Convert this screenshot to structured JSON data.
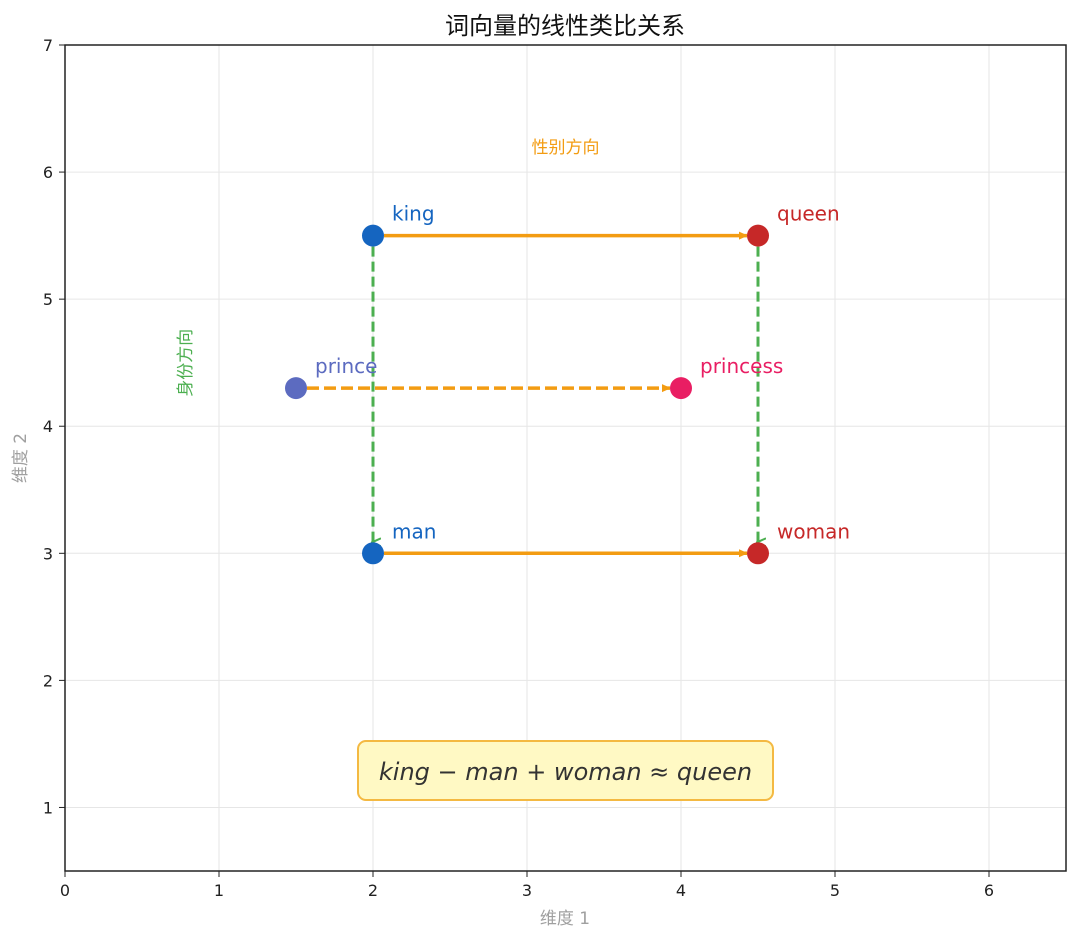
{
  "chart_data": {
    "type": "scatter",
    "title": "词向量的线性类比关系",
    "xlabel": "维度 1",
    "ylabel": "维度 2",
    "xlim": [
      0,
      6.5
    ],
    "ylim": [
      0.5,
      7
    ],
    "xticks": [
      0,
      1,
      2,
      3,
      4,
      5,
      6
    ],
    "yticks": [
      1,
      2,
      3,
      4,
      5,
      6,
      7
    ],
    "grid": true,
    "points": [
      {
        "label": "king",
        "x": 2.0,
        "y": 5.5,
        "color": "#1565C0"
      },
      {
        "label": "queen",
        "x": 4.5,
        "y": 5.5,
        "color": "#C62828"
      },
      {
        "label": "man",
        "x": 2.0,
        "y": 3.0,
        "color": "#1565C0"
      },
      {
        "label": "woman",
        "x": 4.5,
        "y": 3.0,
        "color": "#C62828"
      },
      {
        "label": "prince",
        "x": 1.5,
        "y": 4.3,
        "color": "#5C6BC0"
      },
      {
        "label": "princess",
        "x": 4.0,
        "y": 4.3,
        "color": "#E91E63"
      }
    ],
    "arrows": [
      {
        "from": "king",
        "to": "queen",
        "style": "solid",
        "color": "#F39C12"
      },
      {
        "from": "man",
        "to": "woman",
        "style": "solid",
        "color": "#F39C12"
      },
      {
        "from": "prince",
        "to": "princess",
        "style": "dashed",
        "color": "#F39C12"
      },
      {
        "from": "king",
        "to": "man",
        "style": "dashed",
        "color": "#4CAF50"
      },
      {
        "from": "queen",
        "to": "woman",
        "style": "dashed",
        "color": "#4CAF50"
      }
    ],
    "annotations": [
      {
        "text": "性别方向",
        "x": 3.25,
        "y": 6.15,
        "color": "#F39C12"
      },
      {
        "text": "身份方向",
        "x": 0.78,
        "y": 4.5,
        "color": "#4CAF50",
        "rotation": -90
      }
    ],
    "formula": "king − man + woman ≈ queen"
  }
}
